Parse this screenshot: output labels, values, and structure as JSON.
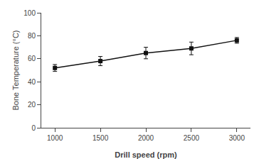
{
  "chart_data": {
    "type": "line",
    "x": [
      1000,
      1500,
      2000,
      2500,
      3000
    ],
    "values": [
      52,
      58,
      65,
      69,
      76
    ],
    "yerr": [
      3.0,
      4.0,
      5.0,
      5.5,
      2.5
    ],
    "xlabel": "Drill speed (rpm)",
    "ylabel": "Bone Temperature (°C)",
    "xlim": [
      850,
      3150
    ],
    "ylim": [
      0,
      100
    ],
    "xticks": [
      1000,
      1500,
      2000,
      2500,
      3000
    ],
    "yticks": [
      0,
      20,
      40,
      60,
      80,
      100
    ],
    "color": "#111111",
    "marker": "square",
    "grid": false
  }
}
